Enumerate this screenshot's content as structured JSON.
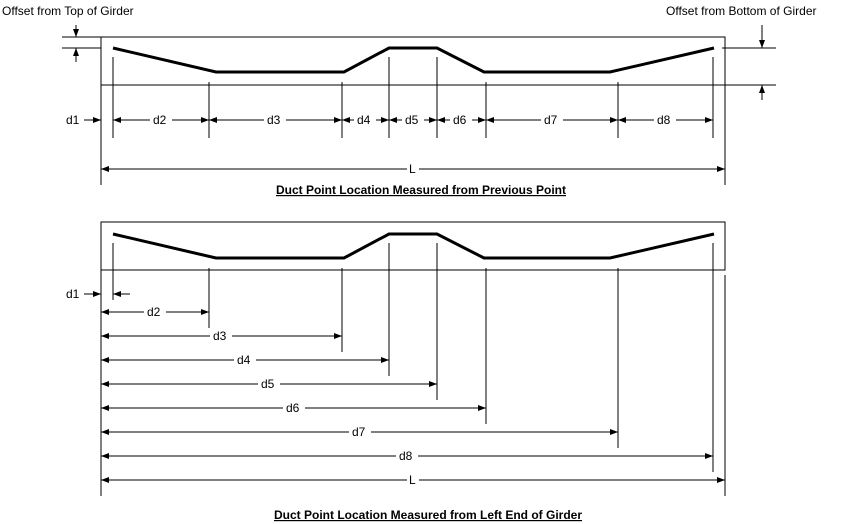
{
  "top": {
    "offset_top_label": "Offset from Top of Girder",
    "offset_bottom_label": "Offset from Bottom of Girder",
    "dim_labels": [
      "d1",
      "d2",
      "d3",
      "d4",
      "d5",
      "d6",
      "d7",
      "d8"
    ],
    "length_label": "L",
    "caption": "Duct Point Location Measured from Previous Point"
  },
  "bottom": {
    "dim_labels": [
      "d1",
      "d2",
      "d3",
      "d4",
      "d5",
      "d6",
      "d7",
      "d8"
    ],
    "length_label": "L",
    "caption": "Duct Point Location Measured from Left End of Girder"
  }
}
